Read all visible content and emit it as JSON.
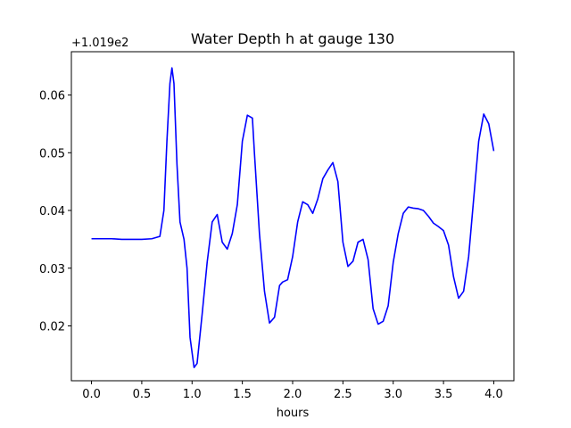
{
  "chart_data": {
    "type": "line",
    "title": "Water Depth h at gauge 130",
    "xlabel": "hours",
    "ylabel": "",
    "offset_text": "+1.019e2",
    "offset_value": 101.9,
    "xlim": [
      -0.2,
      4.2
    ],
    "ylim": [
      0.0105,
      0.0675
    ],
    "xticks": [
      0.0,
      0.5,
      1.0,
      1.5,
      2.0,
      2.5,
      3.0,
      3.5,
      4.0
    ],
    "xtick_labels": [
      "0.0",
      "0.5",
      "1.0",
      "1.5",
      "2.0",
      "2.5",
      "3.0",
      "3.5",
      "4.0"
    ],
    "yticks": [
      0.02,
      0.03,
      0.04,
      0.05,
      0.06
    ],
    "ytick_labels": [
      "0.02",
      "0.03",
      "0.04",
      "0.05",
      "0.06"
    ],
    "grid": false,
    "series": [
      {
        "color": "#0000ff",
        "x": [
          0.0,
          0.2,
          0.3,
          0.4,
          0.5,
          0.6,
          0.68,
          0.72,
          0.75,
          0.78,
          0.8,
          0.82,
          0.85,
          0.88,
          0.92,
          0.95,
          0.98,
          1.02,
          1.05,
          1.1,
          1.15,
          1.2,
          1.25,
          1.3,
          1.35,
          1.4,
          1.45,
          1.5,
          1.55,
          1.6,
          1.62,
          1.67,
          1.72,
          1.77,
          1.82,
          1.87,
          1.9,
          1.95,
          2.0,
          2.05,
          2.1,
          2.15,
          2.2,
          2.25,
          2.3,
          2.35,
          2.4,
          2.45,
          2.5,
          2.55,
          2.6,
          2.65,
          2.7,
          2.75,
          2.8,
          2.85,
          2.9,
          2.95,
          3.0,
          3.05,
          3.1,
          3.15,
          3.2,
          3.25,
          3.3,
          3.35,
          3.4,
          3.45,
          3.5,
          3.55,
          3.6,
          3.65,
          3.7,
          3.75,
          3.8,
          3.85,
          3.9,
          3.95,
          4.0
        ],
        "y": [
          0.0351,
          0.0351,
          0.035,
          0.035,
          0.035,
          0.0351,
          0.0355,
          0.04,
          0.052,
          0.062,
          0.0647,
          0.062,
          0.048,
          0.038,
          0.035,
          0.03,
          0.018,
          0.0128,
          0.0135,
          0.022,
          0.031,
          0.038,
          0.0393,
          0.0345,
          0.0333,
          0.036,
          0.041,
          0.052,
          0.0565,
          0.056,
          0.05,
          0.036,
          0.026,
          0.0205,
          0.0215,
          0.027,
          0.0276,
          0.028,
          0.032,
          0.038,
          0.0415,
          0.041,
          0.0395,
          0.042,
          0.0455,
          0.047,
          0.0483,
          0.045,
          0.0345,
          0.0303,
          0.0312,
          0.0345,
          0.035,
          0.0315,
          0.023,
          0.0203,
          0.0208,
          0.0235,
          0.031,
          0.036,
          0.0395,
          0.0406,
          0.0404,
          0.0403,
          0.04,
          0.039,
          0.0378,
          0.0372,
          0.0365,
          0.034,
          0.0285,
          0.0248,
          0.026,
          0.032,
          0.042,
          0.052,
          0.0567,
          0.055,
          0.0503
        ]
      }
    ]
  }
}
